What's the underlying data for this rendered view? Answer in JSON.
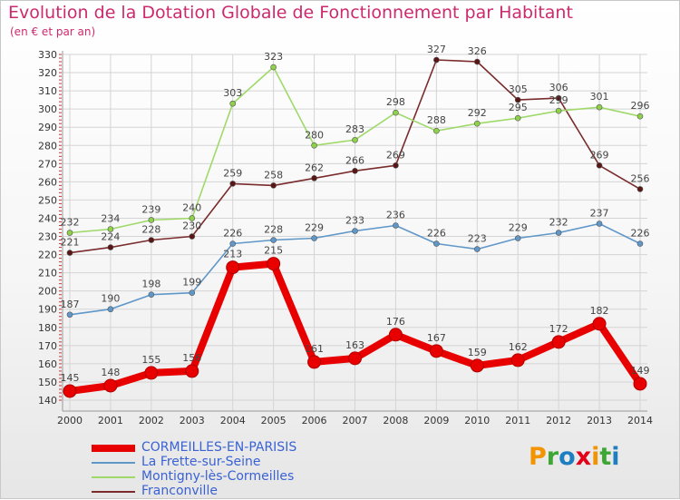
{
  "title": "Evolution de la Dotation Globale de Fonctionnement par Habitant",
  "subtitle": "(en € et par an)",
  "logo_text": "Proxiti",
  "logo_colors": [
    "#f29400",
    "#3fa535",
    "#1d7fc1",
    "#e2001a",
    "#f29400",
    "#3fa535",
    "#1d7fc1"
  ],
  "chart_data": {
    "type": "line",
    "title": "Evolution de la Dotation Globale de Fonctionnement par Habitant",
    "subtitle": "(en € et par an)",
    "xlabel": "",
    "ylabel": "",
    "x": [
      2000,
      2001,
      2002,
      2003,
      2004,
      2005,
      2006,
      2007,
      2008,
      2009,
      2010,
      2011,
      2012,
      2013,
      2014
    ],
    "ylim": [
      140,
      330
    ],
    "yticks": [
      140,
      150,
      160,
      170,
      180,
      190,
      200,
      210,
      220,
      230,
      240,
      250,
      260,
      270,
      280,
      290,
      300,
      310,
      320,
      330
    ],
    "grid": true,
    "legend_position": "bottom-left",
    "series": [
      {
        "name": "CORMEILLES-EN-PARISIS",
        "color": "#e80000",
        "values": [
          145,
          148,
          155,
          156,
          213,
          215,
          161,
          163,
          176,
          167,
          159,
          162,
          172,
          182,
          149
        ]
      },
      {
        "name": "La Frette-sur-Seine",
        "color": "#5f97c9",
        "values": [
          187,
          190,
          198,
          199,
          226,
          228,
          229,
          233,
          236,
          226,
          223,
          229,
          232,
          237,
          226
        ]
      },
      {
        "name": "Montigny-lès-Cormeilles",
        "color": "#9fd96a",
        "values": [
          232,
          234,
          239,
          240,
          303,
          323,
          280,
          283,
          298,
          288,
          292,
          295,
          299,
          301,
          296
        ]
      },
      {
        "name": "Franconville",
        "color": "#7a2b2b",
        "values": [
          221,
          224,
          228,
          230,
          259,
          258,
          262,
          266,
          269,
          327,
          326,
          305,
          306,
          269,
          256
        ]
      }
    ]
  }
}
